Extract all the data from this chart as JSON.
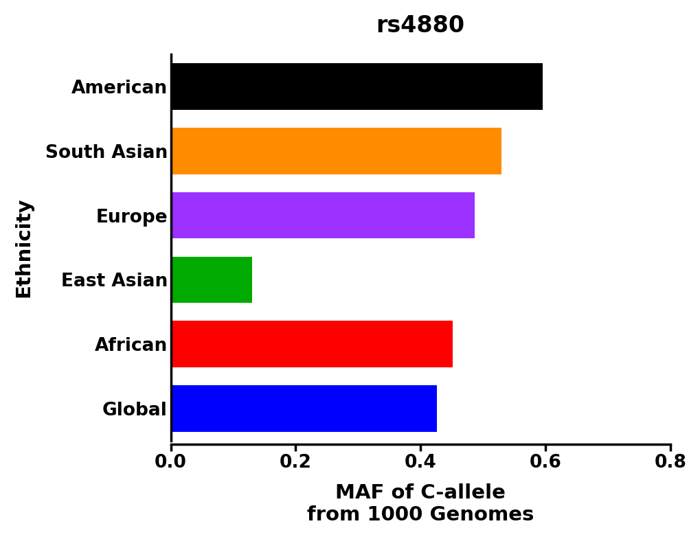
{
  "title": "rs4880",
  "categories": [
    "American",
    "South Asian",
    "Europe",
    "East Asian",
    "African",
    "Global"
  ],
  "values": [
    0.596,
    0.53,
    0.487,
    0.13,
    0.452,
    0.426
  ],
  "colors": [
    "#000000",
    "#FF8C00",
    "#9B30FF",
    "#00AA00",
    "#FF0000",
    "#0000FF"
  ],
  "xlabel": "MAF of C-allele\nfrom 1000 Genomes",
  "ylabel": "Ethnicity",
  "xlim": [
    0,
    0.8
  ],
  "xticks": [
    0.0,
    0.2,
    0.4,
    0.6,
    0.8
  ],
  "title_fontsize": 24,
  "label_fontsize": 21,
  "tick_fontsize": 19,
  "bar_height": 0.72,
  "background_color": "#ffffff"
}
